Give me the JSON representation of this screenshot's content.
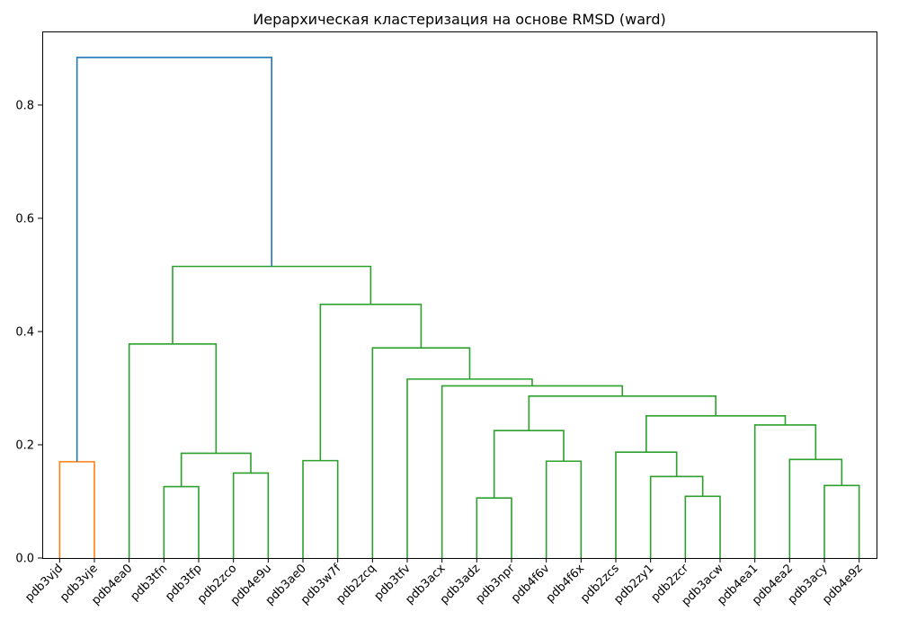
{
  "chart_data": {
    "type": "dendrogram",
    "title": "Иерархическая кластеризация на основе RMSD (ward)",
    "xlabel": "",
    "ylabel": "",
    "ylim": [
      0,
      0.93
    ],
    "yticks": [
      0.0,
      0.2,
      0.4,
      0.6,
      0.8
    ],
    "ytick_labels": [
      "0.0",
      "0.2",
      "0.4",
      "0.6",
      "0.8"
    ],
    "grid": false,
    "legend": "none",
    "leaves": [
      "pdb3vjd",
      "pdb3vje",
      "pdb4ea0",
      "pdb3tfn",
      "pdb3tfp",
      "pdb2zco",
      "pdb4e9u",
      "pdb3ae0",
      "pdb3w7f",
      "pdb2zcq",
      "pdb3tfv",
      "pdb3acx",
      "pdb3adz",
      "pdb3npr",
      "pdb4f6v",
      "pdb4f6x",
      "pdb2zcs",
      "pdb2zy1",
      "pdb2zcr",
      "pdb3acw",
      "pdb4ea1",
      "pdb4ea2",
      "pdb3acy",
      "pdb4e9z"
    ],
    "colors": {
      "cluster_orange": "#ff7f0e",
      "cluster_green": "#2ca02c",
      "above_threshold": "#1f77b4"
    },
    "merges": [
      {
        "a": "L0",
        "b": "L1",
        "height": 0.17,
        "color": "#ff7f0e"
      },
      {
        "a": "L3",
        "b": "L4",
        "height": 0.126,
        "color": "#2ca02c"
      },
      {
        "a": "L5",
        "b": "L6",
        "height": 0.15,
        "color": "#2ca02c"
      },
      {
        "a": "M1",
        "b": "M2",
        "height": 0.185,
        "color": "#2ca02c"
      },
      {
        "a": "L2",
        "b": "M3",
        "height": 0.378,
        "color": "#2ca02c"
      },
      {
        "a": "L7",
        "b": "L8",
        "height": 0.172,
        "color": "#2ca02c"
      },
      {
        "a": "L12",
        "b": "L13",
        "height": 0.106,
        "color": "#2ca02c"
      },
      {
        "a": "L14",
        "b": "L15",
        "height": 0.171,
        "color": "#2ca02c"
      },
      {
        "a": "M6",
        "b": "M7",
        "height": 0.225,
        "color": "#2ca02c"
      },
      {
        "a": "L18",
        "b": "L19",
        "height": 0.109,
        "color": "#2ca02c"
      },
      {
        "a": "L17",
        "b": "M9",
        "height": 0.144,
        "color": "#2ca02c"
      },
      {
        "a": "L16",
        "b": "M10",
        "height": 0.187,
        "color": "#2ca02c"
      },
      {
        "a": "L22",
        "b": "L23",
        "height": 0.128,
        "color": "#2ca02c"
      },
      {
        "a": "L21",
        "b": "M12",
        "height": 0.174,
        "color": "#2ca02c"
      },
      {
        "a": "L20",
        "b": "M13",
        "height": 0.235,
        "color": "#2ca02c"
      },
      {
        "a": "M11",
        "b": "M14",
        "height": 0.251,
        "color": "#2ca02c"
      },
      {
        "a": "M8",
        "b": "M15",
        "height": 0.286,
        "color": "#2ca02c"
      },
      {
        "a": "L11",
        "b": "M16",
        "height": 0.304,
        "color": "#2ca02c"
      },
      {
        "a": "L10",
        "b": "M17",
        "height": 0.316,
        "color": "#2ca02c"
      },
      {
        "a": "L9",
        "b": "M18",
        "height": 0.371,
        "color": "#2ca02c"
      },
      {
        "a": "M5",
        "b": "M19",
        "height": 0.448,
        "color": "#2ca02c"
      },
      {
        "a": "M4",
        "b": "M20",
        "height": 0.515,
        "color": "#2ca02c"
      },
      {
        "a": "M0",
        "b": "M21",
        "height": 0.884,
        "color": "#1f77b4"
      }
    ]
  }
}
